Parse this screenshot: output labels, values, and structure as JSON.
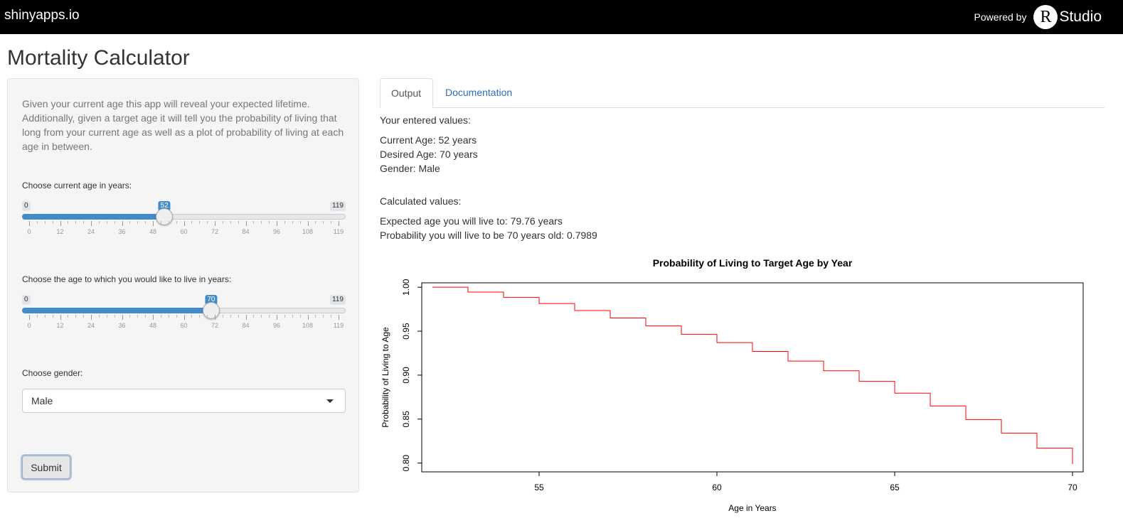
{
  "header": {
    "brand": "shinyapps.io",
    "powered_by": "Powered by",
    "r_letter": "R",
    "studio": "Studio"
  },
  "page_title": "Mortality Calculator",
  "sidebar": {
    "intro": "Given your current age this app will reveal your expected lifetime. Additionally, given a target age it will tell you the probability of living that long from your current age as well as a plot of probability of living at each age in between.",
    "current_age": {
      "label": "Choose current age in years:",
      "min": "0",
      "max": "119",
      "value": "52",
      "tick_labels": [
        "0",
        "12",
        "24",
        "36",
        "48",
        "60",
        "72",
        "84",
        "96",
        "108",
        "119"
      ]
    },
    "target_age": {
      "label": "Choose the age to which you would like to live in years:",
      "min": "0",
      "max": "119",
      "value": "70",
      "tick_labels": [
        "0",
        "12",
        "24",
        "36",
        "48",
        "60",
        "72",
        "84",
        "96",
        "108",
        "119"
      ]
    },
    "gender": {
      "label": "Choose gender:",
      "value": "Male"
    },
    "submit_label": "Submit"
  },
  "colors": {
    "accent": "#428bca",
    "link": "#2a6ebd",
    "line": "#ff0000"
  },
  "tabs": [
    {
      "label": "Output"
    },
    {
      "label": "Documentation"
    }
  ],
  "output": {
    "entered_heading": "Your entered values:",
    "current_age": "Current Age: 52 years",
    "desired_age": "Desired Age: 70 years",
    "gender": "Gender: Male",
    "calculated_heading": "Calculated values:",
    "expected_age": "Expected age you will live to: 79.76 years",
    "probability": "Probability you will live to be 70 years old: 0.7989"
  },
  "chart_data": {
    "type": "line",
    "step": true,
    "title": "Probability of Living to Target Age by Year",
    "xlabel": "Age in Years",
    "ylabel": "Probability of Living to Age",
    "xlim": [
      51.7,
      70.3
    ],
    "ylim": [
      0.79,
      1.005
    ],
    "x_ticks": [
      55,
      60,
      65,
      70
    ],
    "y_ticks": [
      "0.80",
      "0.85",
      "0.90",
      "0.95",
      "1.00"
    ],
    "series": [
      {
        "color": "#ff0000",
        "x": [
          52,
          53,
          54,
          55,
          56,
          57,
          58,
          59,
          60,
          61,
          62,
          63,
          64,
          65,
          66,
          67,
          68,
          69,
          70
        ],
        "y": [
          1.0,
          0.9945,
          0.9885,
          0.9815,
          0.9735,
          0.965,
          0.956,
          0.9465,
          0.937,
          0.927,
          0.916,
          0.905,
          0.893,
          0.8795,
          0.865,
          0.8495,
          0.834,
          0.817,
          0.7989
        ]
      }
    ]
  }
}
